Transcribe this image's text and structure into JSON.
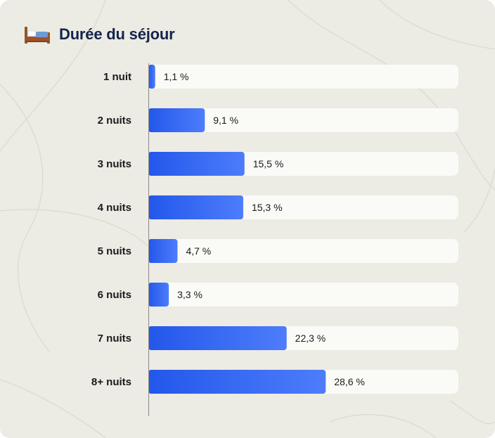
{
  "title": "Durée du séjour",
  "icon": "bed-icon",
  "colors": {
    "background": "#ecebe4",
    "track": "#fafaf7",
    "bar_start": "#2357ea",
    "bar_end": "#4d7dfb",
    "title": "#14244b",
    "axis": "#8a8a8a"
  },
  "chart_data": {
    "type": "bar",
    "orientation": "horizontal",
    "title": "Durée du séjour",
    "categories": [
      "1 nuit",
      "2 nuits",
      "3 nuits",
      "4 nuits",
      "5 nuits",
      "6 nuits",
      "7 nuits",
      "8+ nuits"
    ],
    "values": [
      1.1,
      9.1,
      15.5,
      15.3,
      4.7,
      3.3,
      22.3,
      28.6
    ],
    "value_labels": [
      "1,1 %",
      "9,1 %",
      "15,5 %",
      "15,3 %",
      "4,7 %",
      "3,3 %",
      "22,3 %",
      "28,6 %"
    ],
    "unit": "%",
    "xlim": [
      0,
      50
    ],
    "grid": false,
    "legend": "none"
  }
}
